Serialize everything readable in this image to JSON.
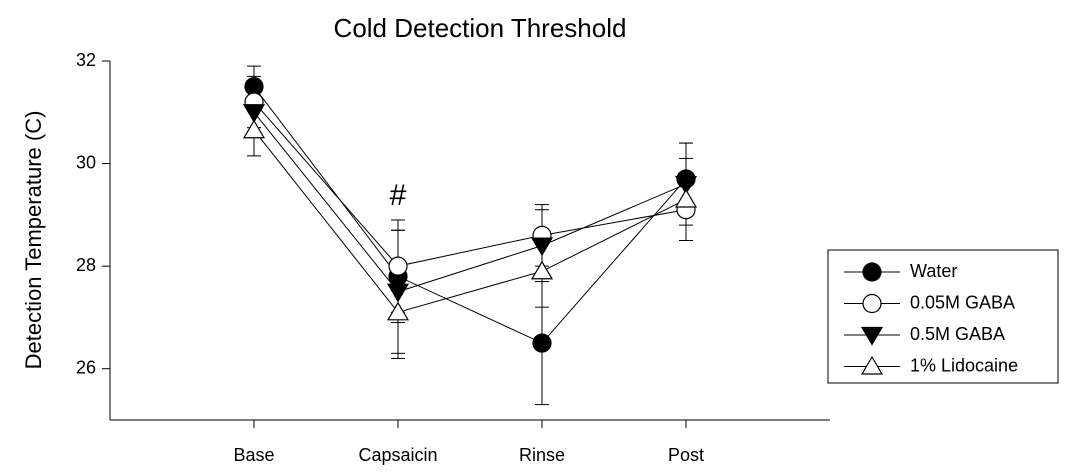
{
  "chart_data": {
    "type": "line",
    "title": "Cold Detection Threshold",
    "y_label": "Detection Temperature (C)",
    "categories": [
      "Base",
      "Capsaicin",
      "Rinse",
      "Post"
    ],
    "ylim": [
      25,
      32
    ],
    "yticks": [
      26,
      28,
      30,
      32
    ],
    "legend": "right",
    "annotations": [
      {
        "text": "#",
        "category": 1,
        "y": 29.35
      }
    ],
    "series": [
      {
        "name": "Water",
        "color": "#000000",
        "marker": "circle-filled",
        "values": [
          31.5,
          27.8,
          26.5,
          29.7
        ],
        "errors": [
          0.4,
          0.9,
          1.2,
          0.7
        ]
      },
      {
        "name": "0.05M GABA",
        "color": "#000000",
        "marker": "circle-open",
        "values": [
          31.2,
          28.0,
          28.6,
          29.1
        ],
        "errors": [
          0.5,
          0.9,
          0.6,
          0.6
        ]
      },
      {
        "name": "0.5M GABA",
        "color": "#000000",
        "marker": "triangle-down-filled",
        "values": [
          31.0,
          27.5,
          28.4,
          29.6
        ],
        "errors": [
          0.4,
          1.2,
          0.7,
          0.8
        ]
      },
      {
        "name": "1% Lidocaine",
        "color": "#000000",
        "marker": "triangle-up-open",
        "values": [
          30.65,
          27.1,
          27.9,
          29.3
        ],
        "errors": [
          0.5,
          0.9,
          0.7,
          0.8
        ]
      }
    ]
  }
}
